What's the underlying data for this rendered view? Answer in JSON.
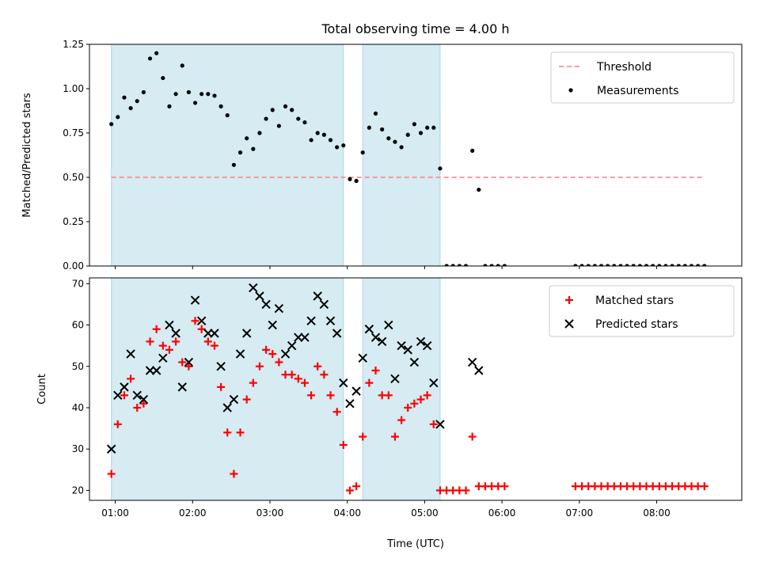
{
  "chart_data": [
    {
      "type": "scatter",
      "title": "Total observing time = 4.00 h",
      "xlabel": "",
      "ylabel": "Matched/Predicted stars",
      "xlim": [
        "00:40",
        "09:06"
      ],
      "ylim": [
        0,
        1.25
      ],
      "yticks": [
        "0.00",
        "0.25",
        "0.50",
        "0.75",
        "1.00",
        "1.25"
      ],
      "xticks": [
        "01:00",
        "02:00",
        "03:00",
        "04:00",
        "05:00",
        "06:00",
        "07:00",
        "08:00"
      ],
      "show_xtick_labels": false,
      "shaded_spans": [
        [
          "00:57",
          "03:57"
        ],
        [
          "04:12",
          "05:12"
        ]
      ],
      "legend": {
        "position": "upper right",
        "entries": [
          "Threshold",
          "Measurements"
        ]
      },
      "series": [
        {
          "name": "Threshold",
          "kind": "line",
          "style": "dashed",
          "color": "#ff7f7f",
          "x": [
            "00:57",
            "08:37"
          ],
          "y": [
            0.5,
            0.5
          ]
        },
        {
          "name": "Measurements",
          "kind": "scatter",
          "marker": "dot",
          "color": "#000000",
          "points": [
            [
              "00:57",
              0.8
            ],
            [
              "01:02",
              0.84
            ],
            [
              "01:07",
              0.95
            ],
            [
              "01:12",
              0.89
            ],
            [
              "01:17",
              0.93
            ],
            [
              "01:22",
              0.98
            ],
            [
              "01:27",
              1.17
            ],
            [
              "01:32",
              1.2
            ],
            [
              "01:37",
              1.06
            ],
            [
              "01:42",
              0.9
            ],
            [
              "01:47",
              0.97
            ],
            [
              "01:52",
              1.13
            ],
            [
              "01:57",
              0.98
            ],
            [
              "02:02",
              0.92
            ],
            [
              "02:07",
              0.97
            ],
            [
              "02:12",
              0.97
            ],
            [
              "02:17",
              0.96
            ],
            [
              "02:22",
              0.9
            ],
            [
              "02:27",
              0.85
            ],
            [
              "02:32",
              0.57
            ],
            [
              "02:37",
              0.64
            ],
            [
              "02:42",
              0.72
            ],
            [
              "02:47",
              0.66
            ],
            [
              "02:52",
              0.75
            ],
            [
              "02:57",
              0.83
            ],
            [
              "03:02",
              0.88
            ],
            [
              "03:07",
              0.79
            ],
            [
              "03:12",
              0.9
            ],
            [
              "03:17",
              0.88
            ],
            [
              "03:22",
              0.83
            ],
            [
              "03:27",
              0.81
            ],
            [
              "03:32",
              0.71
            ],
            [
              "03:37",
              0.75
            ],
            [
              "03:42",
              0.74
            ],
            [
              "03:47",
              0.71
            ],
            [
              "03:52",
              0.67
            ],
            [
              "03:57",
              0.68
            ],
            [
              "04:02",
              0.49
            ],
            [
              "04:07",
              0.48
            ],
            [
              "04:12",
              0.64
            ],
            [
              "04:17",
              0.78
            ],
            [
              "04:22",
              0.86
            ],
            [
              "04:27",
              0.77
            ],
            [
              "04:32",
              0.72
            ],
            [
              "04:37",
              0.7
            ],
            [
              "04:42",
              0.67
            ],
            [
              "04:47",
              0.74
            ],
            [
              "04:52",
              0.8
            ],
            [
              "04:57",
              0.75
            ],
            [
              "05:02",
              0.78
            ],
            [
              "05:07",
              0.78
            ],
            [
              "05:12",
              0.55
            ],
            [
              "05:17",
              0.0
            ],
            [
              "05:22",
              0.0
            ],
            [
              "05:27",
              0.0
            ],
            [
              "05:32",
              0.0
            ],
            [
              "05:37",
              0.65
            ],
            [
              "05:42",
              0.43
            ],
            [
              "05:47",
              0.0
            ],
            [
              "05:52",
              0.0
            ],
            [
              "05:57",
              0.0
            ],
            [
              "06:02",
              0.0
            ],
            [
              "06:57",
              0.0
            ],
            [
              "07:02",
              0.0
            ],
            [
              "07:07",
              0.0
            ],
            [
              "07:12",
              0.0
            ],
            [
              "07:17",
              0.0
            ],
            [
              "07:22",
              0.0
            ],
            [
              "07:27",
              0.0
            ],
            [
              "07:32",
              0.0
            ],
            [
              "07:37",
              0.0
            ],
            [
              "07:42",
              0.0
            ],
            [
              "07:47",
              0.0
            ],
            [
              "07:52",
              0.0
            ],
            [
              "07:57",
              0.0
            ],
            [
              "08:02",
              0.0
            ],
            [
              "08:07",
              0.0
            ],
            [
              "08:12",
              0.0
            ],
            [
              "08:17",
              0.0
            ],
            [
              "08:22",
              0.0
            ],
            [
              "08:27",
              0.0
            ],
            [
              "08:32",
              0.0
            ],
            [
              "08:37",
              0.0
            ]
          ]
        }
      ]
    },
    {
      "type": "scatter",
      "title": "",
      "xlabel": "Time (UTC)",
      "ylabel": "Count",
      "xlim": [
        "00:40",
        "09:06"
      ],
      "ylim": [
        17.6,
        71.4
      ],
      "yticks": [
        "20",
        "30",
        "40",
        "50",
        "60",
        "70"
      ],
      "xticks": [
        "01:00",
        "02:00",
        "03:00",
        "04:00",
        "05:00",
        "06:00",
        "07:00",
        "08:00"
      ],
      "show_xtick_labels": true,
      "shaded_spans": [
        [
          "00:57",
          "03:57"
        ],
        [
          "04:12",
          "05:12"
        ]
      ],
      "legend": {
        "position": "upper right",
        "entries": [
          "Matched stars",
          "Predicted stars"
        ]
      },
      "series": [
        {
          "name": "Matched stars",
          "kind": "scatter",
          "marker": "plus",
          "color": "#ff0000",
          "points": [
            [
              "00:57",
              24
            ],
            [
              "01:02",
              36
            ],
            [
              "01:07",
              43
            ],
            [
              "01:12",
              47
            ],
            [
              "01:17",
              40
            ],
            [
              "01:22",
              41
            ],
            [
              "01:27",
              56
            ],
            [
              "01:32",
              59
            ],
            [
              "01:37",
              55
            ],
            [
              "01:42",
              54
            ],
            [
              "01:47",
              56
            ],
            [
              "01:52",
              51
            ],
            [
              "01:57",
              50
            ],
            [
              "02:02",
              61
            ],
            [
              "02:07",
              59
            ],
            [
              "02:12",
              56
            ],
            [
              "02:17",
              55
            ],
            [
              "02:22",
              45
            ],
            [
              "02:27",
              34
            ],
            [
              "02:32",
              24
            ],
            [
              "02:37",
              34
            ],
            [
              "02:42",
              42
            ],
            [
              "02:47",
              46
            ],
            [
              "02:52",
              50
            ],
            [
              "02:57",
              54
            ],
            [
              "03:02",
              53
            ],
            [
              "03:07",
              51
            ],
            [
              "03:12",
              48
            ],
            [
              "03:17",
              48
            ],
            [
              "03:22",
              47
            ],
            [
              "03:27",
              46
            ],
            [
              "03:32",
              43
            ],
            [
              "03:37",
              50
            ],
            [
              "03:42",
              48
            ],
            [
              "03:47",
              43
            ],
            [
              "03:52",
              39
            ],
            [
              "03:57",
              31
            ],
            [
              "04:02",
              20
            ],
            [
              "04:07",
              21
            ],
            [
              "04:12",
              33
            ],
            [
              "04:17",
              46
            ],
            [
              "04:22",
              49
            ],
            [
              "04:27",
              43
            ],
            [
              "04:32",
              43
            ],
            [
              "04:37",
              33
            ],
            [
              "04:42",
              37
            ],
            [
              "04:47",
              40
            ],
            [
              "04:52",
              41
            ],
            [
              "04:57",
              42
            ],
            [
              "05:02",
              43
            ],
            [
              "05:07",
              36
            ],
            [
              "05:12",
              20
            ],
            [
              "05:17",
              20
            ],
            [
              "05:22",
              20
            ],
            [
              "05:27",
              20
            ],
            [
              "05:32",
              20
            ],
            [
              "05:37",
              33
            ],
            [
              "05:42",
              21
            ],
            [
              "05:47",
              21
            ],
            [
              "05:52",
              21
            ],
            [
              "05:57",
              21
            ],
            [
              "06:02",
              21
            ],
            [
              "06:57",
              21
            ],
            [
              "07:02",
              21
            ],
            [
              "07:07",
              21
            ],
            [
              "07:12",
              21
            ],
            [
              "07:17",
              21
            ],
            [
              "07:22",
              21
            ],
            [
              "07:27",
              21
            ],
            [
              "07:32",
              21
            ],
            [
              "07:37",
              21
            ],
            [
              "07:42",
              21
            ],
            [
              "07:47",
              21
            ],
            [
              "07:52",
              21
            ],
            [
              "07:57",
              21
            ],
            [
              "08:02",
              21
            ],
            [
              "08:07",
              21
            ],
            [
              "08:12",
              21
            ],
            [
              "08:17",
              21
            ],
            [
              "08:22",
              21
            ],
            [
              "08:27",
              21
            ],
            [
              "08:32",
              21
            ],
            [
              "08:37",
              21
            ]
          ]
        },
        {
          "name": "Predicted stars",
          "kind": "scatter",
          "marker": "x",
          "color": "#000000",
          "points": [
            [
              "00:57",
              30
            ],
            [
              "01:02",
              43
            ],
            [
              "01:07",
              45
            ],
            [
              "01:12",
              53
            ],
            [
              "01:17",
              43
            ],
            [
              "01:22",
              42
            ],
            [
              "01:27",
              49
            ],
            [
              "01:32",
              49
            ],
            [
              "01:37",
              52
            ],
            [
              "01:42",
              60
            ],
            [
              "01:47",
              58
            ],
            [
              "01:52",
              45
            ],
            [
              "01:57",
              51
            ],
            [
              "02:02",
              66
            ],
            [
              "02:07",
              61
            ],
            [
              "02:12",
              58
            ],
            [
              "02:17",
              58
            ],
            [
              "02:22",
              50
            ],
            [
              "02:27",
              40
            ],
            [
              "02:32",
              42
            ],
            [
              "02:37",
              53
            ],
            [
              "02:42",
              58
            ],
            [
              "02:47",
              69
            ],
            [
              "02:52",
              67
            ],
            [
              "02:57",
              65
            ],
            [
              "03:02",
              60
            ],
            [
              "03:07",
              64
            ],
            [
              "03:12",
              53
            ],
            [
              "03:17",
              55
            ],
            [
              "03:22",
              57
            ],
            [
              "03:27",
              57
            ],
            [
              "03:32",
              61
            ],
            [
              "03:37",
              67
            ],
            [
              "03:42",
              65
            ],
            [
              "03:47",
              61
            ],
            [
              "03:52",
              58
            ],
            [
              "03:57",
              46
            ],
            [
              "04:02",
              41
            ],
            [
              "04:07",
              44
            ],
            [
              "04:12",
              52
            ],
            [
              "04:17",
              59
            ],
            [
              "04:22",
              57
            ],
            [
              "04:27",
              56
            ],
            [
              "04:32",
              60
            ],
            [
              "04:37",
              47
            ],
            [
              "04:42",
              55
            ],
            [
              "04:47",
              54
            ],
            [
              "04:52",
              51
            ],
            [
              "04:57",
              56
            ],
            [
              "05:02",
              55
            ],
            [
              "05:07",
              46
            ],
            [
              "05:12",
              36
            ],
            [
              "05:37",
              51
            ],
            [
              "05:42",
              49
            ]
          ]
        }
      ]
    }
  ]
}
